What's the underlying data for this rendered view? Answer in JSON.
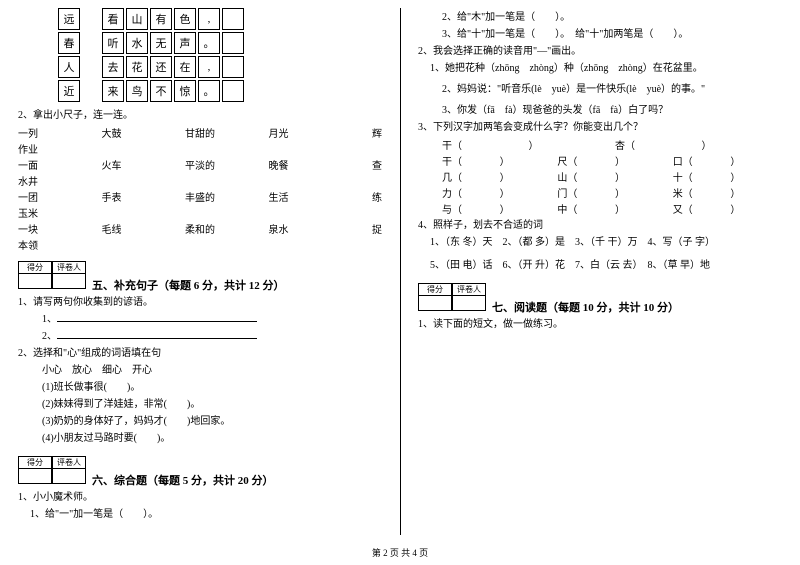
{
  "footer": "第 2 页 共 4 页",
  "left": {
    "grid": {
      "rows": [
        {
          "left": "远",
          "right": [
            "看",
            "山",
            "有",
            "色",
            ",",
            ""
          ]
        },
        {
          "left": "春",
          "right": [
            "听",
            "水",
            "无",
            "声",
            "。",
            ""
          ]
        },
        {
          "left": "人",
          "right": [
            "去",
            "花",
            "还",
            "在",
            ",",
            ""
          ]
        },
        {
          "left": "近",
          "right": [
            "来",
            "鸟",
            "不",
            "惊",
            "。",
            ""
          ]
        }
      ]
    },
    "q2": {
      "title": "2、拿出小尺子，连一连。",
      "rows": [
        {
          "a": "一列",
          "b": "大鼓",
          "c": "甘甜的",
          "d": "月光",
          "e": "辉"
        },
        {
          "a": "作业",
          "b": "",
          "c": "",
          "d": "",
          "e": ""
        },
        {
          "a": "一面",
          "b": "火车",
          "c": "平淡的",
          "d": "晚餐",
          "e": "查"
        },
        {
          "a": "水井",
          "b": "",
          "c": "",
          "d": "",
          "e": ""
        },
        {
          "a": "一团",
          "b": "手表",
          "c": "丰盛的",
          "d": "生活",
          "e": "练"
        },
        {
          "a": "玉米",
          "b": "",
          "c": "",
          "d": "",
          "e": ""
        },
        {
          "a": "一块",
          "b": "毛线",
          "c": "柔和的",
          "d": "泉水",
          "e": "捉"
        },
        {
          "a": "本领",
          "b": "",
          "c": "",
          "d": "",
          "e": ""
        }
      ]
    },
    "score_headers": [
      "得分",
      "评卷人"
    ],
    "section5": {
      "title": "五、补充句子（每题 6 分，共计 12 分）",
      "q1": "1、请写两句你收集到的谚语。",
      "l1": "1、",
      "l2": "2、",
      "q2": "2、选择和\"心\"组成的词语填在句",
      "opts": "小心　放心　细心　开心",
      "items": [
        "(1)班长做事很(　　)。",
        "(2)妹妹得到了洋娃娃，非常(　　)。",
        "(3)奶奶的身体好了，妈妈才(　　)地回家。",
        "(4)小朋友过马路时要(　　)。"
      ]
    },
    "section6": {
      "title": "六、综合题（每题 5 分，共计 20 分）",
      "q1": "1、小小魔术师。",
      "l1": "1、给\"一\"加一笔是（　　）。"
    }
  },
  "right": {
    "top": [
      "2、给\"木\"加一笔是（　　）。",
      "3、给\"十\"加一笔是（　　）。　给\"十\"加两笔是（　　）。"
    ],
    "q2": {
      "title": "2、我会选择正确的读音用\"—\"画出。",
      "l1": "1、她把花种（zhōng　zhòng）种（zhōng　zhòng）在花盆里。",
      "l2": "2、妈妈说：\"听音乐(lè　yuè）是一件快乐(lè　yuè）的事。\"",
      "l3": "3、你发（fā　fà）现爸爸的头发（fā　fà）白了吗？"
    },
    "q3": {
      "title": "3、下列汉字加两笔会变成什么字？你能变出几个？",
      "rows": [
        [
          "干（",
          "）",
          "杏（",
          "）"
        ],
        [
          "干（",
          "）",
          "尺（",
          "）",
          "口（",
          "）"
        ],
        [
          "几（",
          "）",
          "山（",
          "）",
          "十（",
          "）"
        ],
        [
          "力（",
          "）",
          "门（",
          "）",
          "米（",
          "）"
        ],
        [
          "与（",
          "）",
          "中（",
          "）",
          "又（",
          "）"
        ]
      ]
    },
    "q4": {
      "title": "4、照样子，划去不合适的词",
      "l1": "1、（东 冬）天　2、（都 多）是　3、（千 干）万　4、写（子 字）",
      "l2": "5、（田 电）话　6、（开 升）花　7、白（云 去）　8、（草 早）地"
    },
    "score_headers": [
      "得分",
      "评卷人"
    ],
    "section7": {
      "title": "七、阅读题（每题 10 分，共计 10 分）",
      "q1": "1、读下面的短文，做一做练习。"
    }
  }
}
